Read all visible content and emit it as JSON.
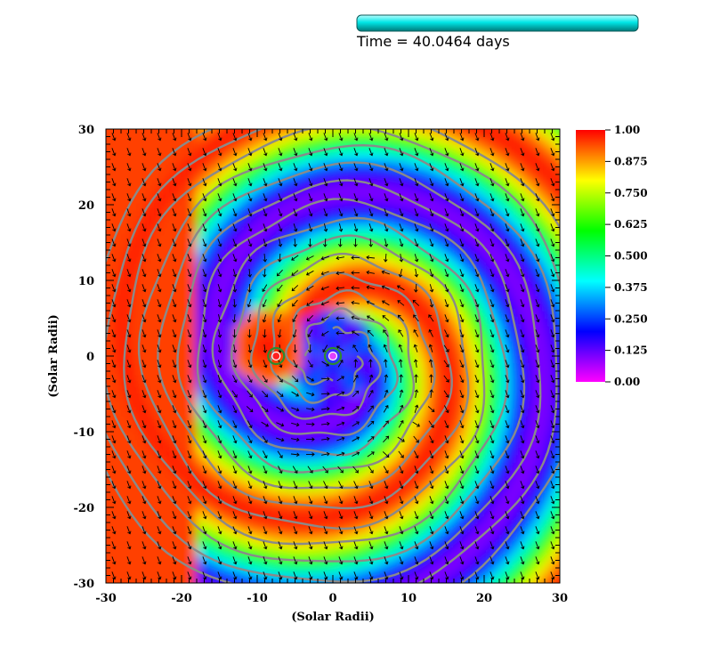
{
  "header": {
    "time_label": "Time = 40.0464 days"
  },
  "animation_progress": {
    "fraction": 1.0,
    "color": "#00e6e6"
  },
  "chart_data": {
    "type": "heatmap",
    "title": "",
    "xlabel": "(Solar Radii)",
    "ylabel": "(Solar Radii)",
    "xlim": [
      -30,
      30
    ],
    "ylim": [
      -30,
      30
    ],
    "x_ticks": [
      -30,
      -20,
      -10,
      0,
      10,
      20,
      30
    ],
    "y_ticks": [
      -30,
      -20,
      -10,
      0,
      10,
      20,
      30
    ],
    "x_tick_labels": [
      "-30",
      "-20",
      "-10",
      "0",
      "10",
      "20",
      "30"
    ],
    "y_tick_labels": [
      "-30",
      "-20",
      "-10",
      "0",
      "10",
      "20",
      "30"
    ],
    "colorbar": {
      "min": 0.0,
      "max": 1.0,
      "ticks": [
        1.0,
        0.875,
        0.75,
        0.625,
        0.5,
        0.375,
        0.25,
        0.125,
        0.0
      ],
      "tick_labels": [
        "1.00",
        "0.875",
        "0.750",
        "0.625",
        "0.500",
        "0.375",
        "0.250",
        "0.125",
        "0.00"
      ],
      "colormap": [
        "#ff00ff",
        "#0000ff",
        "#00ffff",
        "#00ff00",
        "#ffff00",
        "#ff0000"
      ]
    },
    "stars": [
      {
        "x": -7.5,
        "y": 0.0,
        "ring_color": "#2e8b2e"
      },
      {
        "x": 0.0,
        "y": 0.0,
        "ring_color": "#2e8b2e"
      }
    ],
    "overlays": {
      "contour_color": "#8a8a8a",
      "vector_color": "#000000",
      "vector_field": "spiral"
    }
  }
}
